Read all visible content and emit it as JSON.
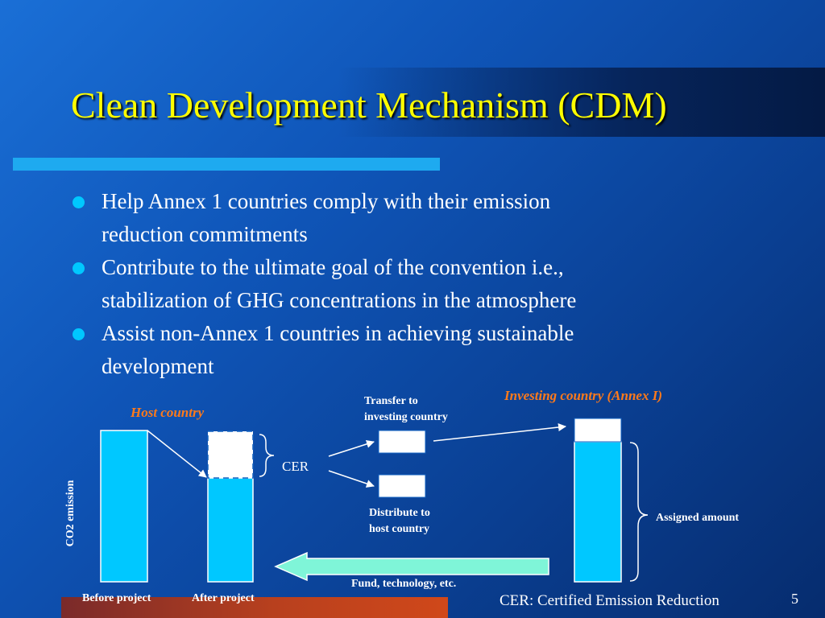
{
  "slide": {
    "title": "Clean Development Mechanism (CDM)",
    "page_number": "5",
    "colors": {
      "title": "#ffff00",
      "accent_bar": "#1eaaf0",
      "bar_fill": "#00c8ff",
      "label_orange": "#ff7a1a",
      "arrow_fill": "#7ff5d8"
    }
  },
  "bullets": [
    {
      "line1": "Help Annex 1 countries comply with their emission",
      "line2": "reduction commitments"
    },
    {
      "line1": "Contribute to the ultimate goal of the convention i.e.,",
      "line2": "stabilization of GHG concentrations in the atmosphere"
    },
    {
      "line1": "Assist non-Annex 1 countries in achieving sustainable",
      "line2": "development"
    }
  ],
  "diagram": {
    "host_country": "Host country",
    "investing_country": "Investing country (Annex I)",
    "y_axis_label": "CO2 emission",
    "before_project": "Before project",
    "after_project": "After project",
    "cer": "CER",
    "transfer_line1": "Transfer to",
    "transfer_line2": "investing country",
    "distribute_line1": "Distribute to",
    "distribute_line2": "host country",
    "assigned_amount": "Assigned amount",
    "fund_label": "Fund, technology, etc.",
    "footnote": "CER: Certified Emission Reduction"
  }
}
